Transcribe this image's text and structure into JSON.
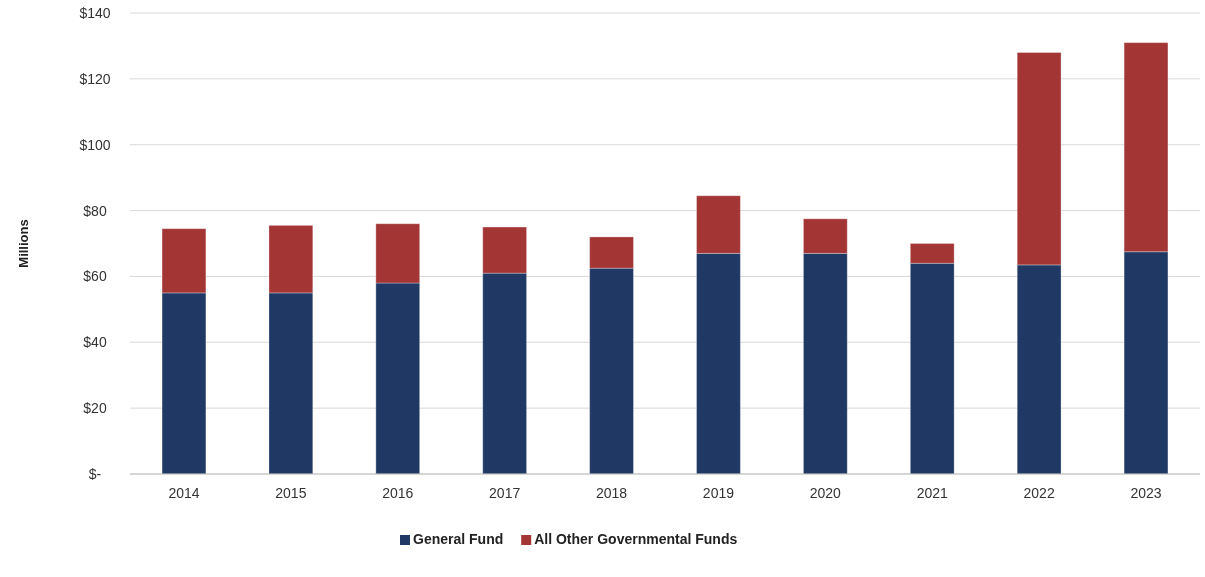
{
  "chart_data": {
    "type": "bar",
    "stacked": true,
    "ylabel": "Millions",
    "categories": [
      "2014",
      "2015",
      "2016",
      "2017",
      "2018",
      "2019",
      "2020",
      "2021",
      "2022",
      "2023"
    ],
    "series": [
      {
        "name": "General Fund",
        "color": "#1f3864",
        "values": [
          55,
          55,
          58,
          61,
          62.5,
          67,
          67,
          64,
          63.5,
          67.5
        ]
      },
      {
        "name": "All Other Governmental Funds",
        "color": "#a33535",
        "values": [
          19.5,
          20.5,
          18,
          14,
          9.5,
          17.5,
          10.5,
          6,
          64.5,
          63.5
        ]
      }
    ],
    "ylim": [
      0,
      140
    ],
    "yticks": [
      {
        "value": 0,
        "label": "$-"
      },
      {
        "value": 20,
        "label": "$20"
      },
      {
        "value": 40,
        "label": "$40"
      },
      {
        "value": 60,
        "label": "$60"
      },
      {
        "value": 80,
        "label": "$80"
      },
      {
        "value": 100,
        "label": "$100"
      },
      {
        "value": 120,
        "label": "$120"
      },
      {
        "value": 140,
        "label": "$140"
      }
    ],
    "grid": "y",
    "legend": "bottom"
  }
}
